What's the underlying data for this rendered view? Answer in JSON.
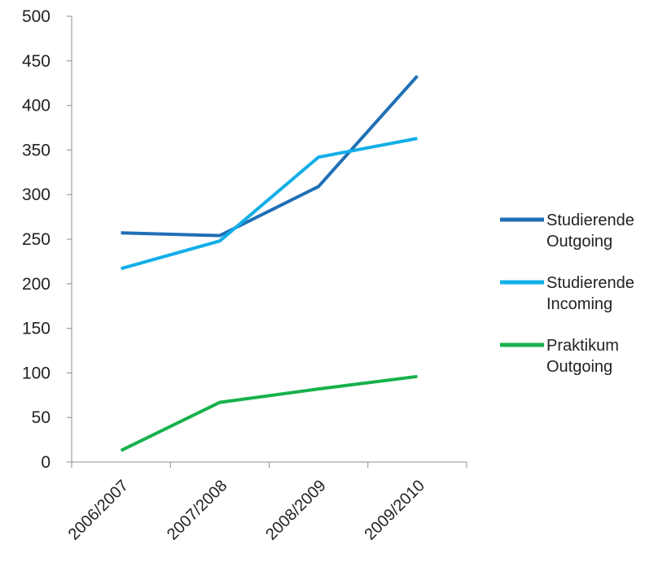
{
  "chart_data": {
    "type": "line",
    "title": "",
    "xlabel": "",
    "ylabel": "",
    "categories": [
      "2006/2007",
      "2007/2008",
      "2008/2009",
      "2009/2010"
    ],
    "ylim": [
      0,
      500
    ],
    "y_ticks": [
      0,
      50,
      100,
      150,
      200,
      250,
      300,
      350,
      400,
      450,
      500
    ],
    "y_tick_labels": [
      "0",
      "50",
      "100",
      "150",
      "200",
      "250",
      "300",
      "350",
      "400",
      "450",
      "500"
    ],
    "grid": false,
    "legend_position": "right",
    "series": [
      {
        "name_line1": "Studierende",
        "name_line2": "Outgoing",
        "color": "#1f6fb5",
        "values": [
          257,
          254,
          309,
          433
        ]
      },
      {
        "name_line1": "Studierende",
        "name_line2": "Incoming",
        "color": "#12aee8",
        "values": [
          217,
          248,
          342,
          363
        ]
      },
      {
        "name_line1": "Praktikum",
        "name_line2": "Outgoing",
        "color": "#17b14c",
        "values": [
          13,
          67,
          82,
          96
        ]
      }
    ]
  }
}
